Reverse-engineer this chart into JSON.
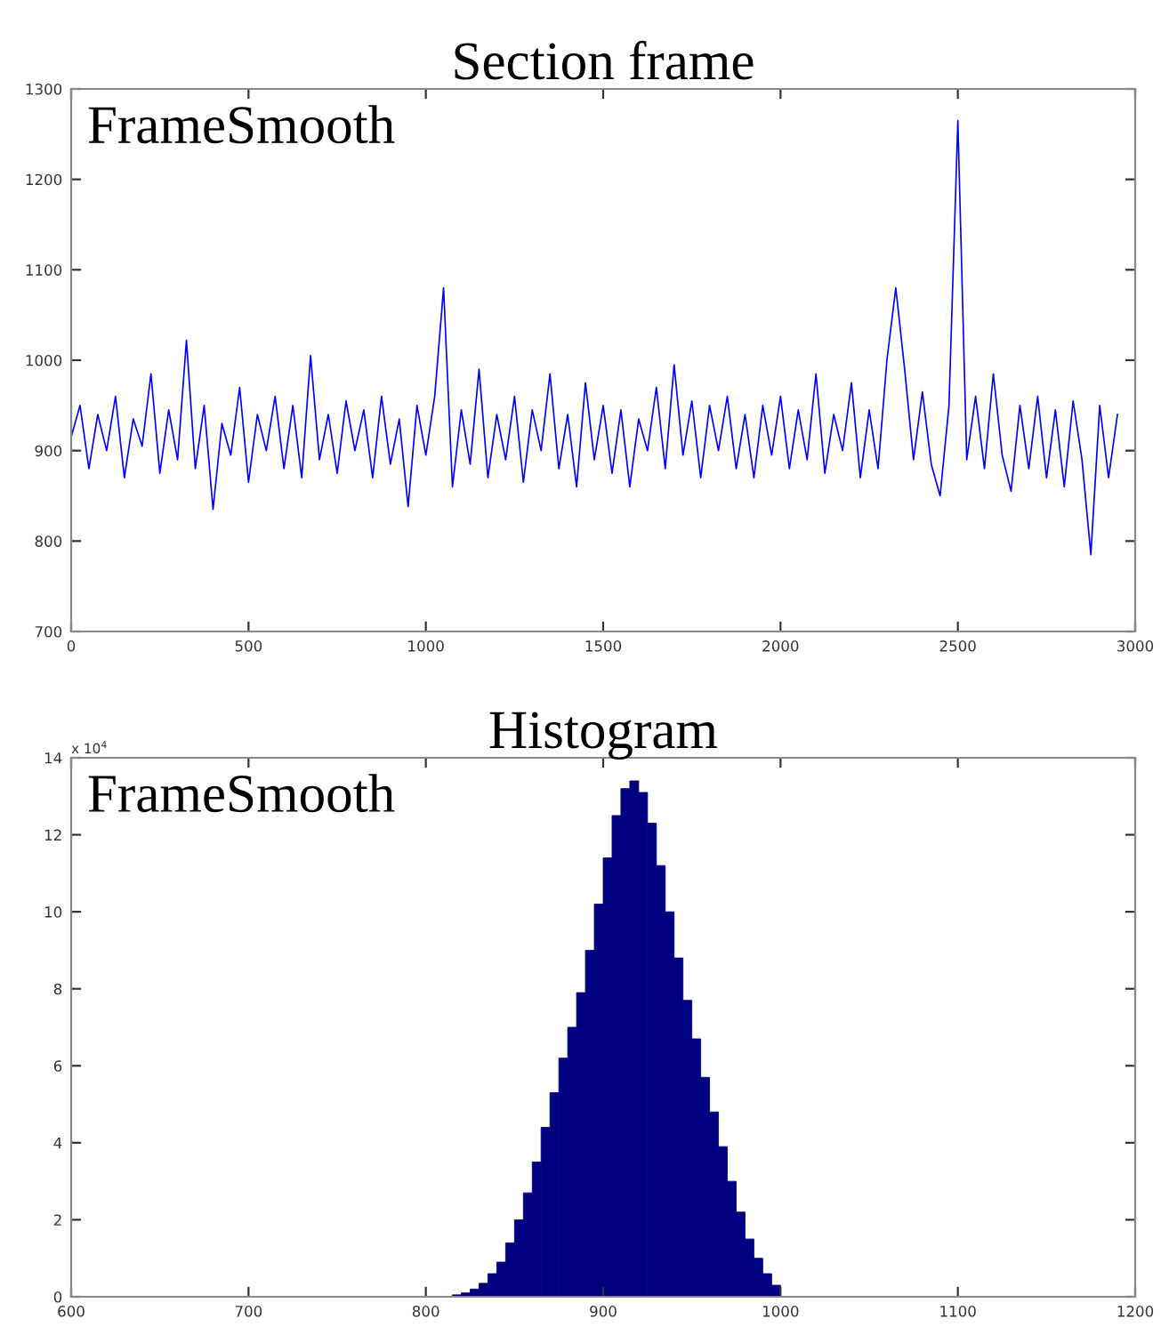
{
  "chart_data": [
    {
      "type": "line",
      "title": "Section frame",
      "annotations": [
        "FrameSmooth"
      ],
      "x": [
        0,
        25,
        50,
        75,
        100,
        125,
        150,
        175,
        200,
        225,
        250,
        275,
        300,
        325,
        350,
        375,
        400,
        425,
        450,
        475,
        500,
        525,
        550,
        575,
        600,
        625,
        650,
        675,
        700,
        725,
        750,
        775,
        800,
        825,
        850,
        875,
        900,
        925,
        950,
        975,
        1000,
        1025,
        1050,
        1075,
        1100,
        1125,
        1150,
        1175,
        1200,
        1225,
        1250,
        1275,
        1300,
        1325,
        1350,
        1375,
        1400,
        1425,
        1450,
        1475,
        1500,
        1525,
        1550,
        1575,
        1600,
        1625,
        1650,
        1675,
        1700,
        1725,
        1750,
        1775,
        1800,
        1825,
        1850,
        1875,
        1900,
        1925,
        1950,
        1975,
        2000,
        2025,
        2050,
        2075,
        2100,
        2125,
        2150,
        2175,
        2200,
        2225,
        2250,
        2275,
        2300,
        2325,
        2350,
        2375,
        2400,
        2425,
        2450,
        2475,
        2500,
        2525,
        2550,
        2575,
        2600,
        2625,
        2650,
        2675,
        2700,
        2725,
        2750,
        2775,
        2800,
        2825,
        2850,
        2875,
        2900,
        2925,
        2950
      ],
      "series": [
        {
          "color": "#0000ff",
          "values": [
            915,
            950,
            880,
            940,
            900,
            960,
            870,
            935,
            905,
            985,
            875,
            945,
            890,
            1022,
            880,
            950,
            835,
            930,
            895,
            970,
            865,
            940,
            900,
            960,
            880,
            950,
            870,
            1005,
            890,
            940,
            875,
            955,
            900,
            945,
            870,
            960,
            885,
            935,
            838,
            950,
            895,
            960,
            1080,
            860,
            945,
            885,
            990,
            870,
            940,
            890,
            960,
            865,
            945,
            900,
            985,
            880,
            940,
            860,
            975,
            890,
            950,
            875,
            945,
            860,
            935,
            900,
            970,
            880,
            995,
            895,
            955,
            870,
            950,
            900,
            960,
            880,
            940,
            870,
            950,
            895,
            960,
            880,
            945,
            890,
            985,
            875,
            940,
            900,
            975,
            870,
            945,
            880,
            1000,
            1080,
            990,
            890,
            965,
            885,
            850,
            950,
            1265,
            890,
            960,
            880,
            985,
            895,
            855,
            950,
            880,
            960,
            870,
            945,
            860,
            955,
            890,
            785,
            950,
            870,
            940
          ]
        }
      ],
      "xlim": [
        0,
        3000
      ],
      "xticks": [
        0,
        500,
        1000,
        1500,
        2000,
        2500,
        3000
      ],
      "ylim": [
        700,
        1300
      ],
      "yticks": [
        700,
        800,
        900,
        1000,
        1100,
        1200,
        1300
      ],
      "line_style": "solid"
    },
    {
      "type": "histogram",
      "title": "Histogram",
      "annotations": [
        "FrameSmooth",
        "x 10$^{4}$"
      ],
      "bins": [
        815,
        820,
        825,
        830,
        835,
        840,
        845,
        850,
        855,
        860,
        865,
        870,
        875,
        880,
        885,
        890,
        895,
        900,
        905,
        910,
        915,
        920,
        925,
        930,
        935,
        940,
        945,
        950,
        955,
        960,
        965,
        970,
        975,
        980,
        985,
        990,
        995,
        1000
      ],
      "values": [
        0.05,
        0.1,
        0.2,
        0.35,
        0.6,
        0.9,
        1.4,
        2.0,
        2.7,
        3.5,
        4.4,
        5.3,
        6.2,
        7.0,
        7.9,
        9.0,
        10.2,
        11.4,
        12.5,
        13.2,
        13.4,
        13.1,
        12.3,
        11.2,
        10.0,
        8.8,
        7.7,
        6.7,
        5.7,
        4.8,
        3.9,
        3.0,
        2.2,
        1.5,
        1.0,
        0.6,
        0.3
      ],
      "color": "#000080",
      "xlim": [
        600,
        1200
      ],
      "xticks": [
        600,
        700,
        800,
        900,
        1000,
        1100,
        1200
      ],
      "ylim": [
        0,
        14
      ],
      "yticks": [
        0,
        2,
        4,
        6,
        8,
        10,
        12,
        14
      ]
    }
  ]
}
